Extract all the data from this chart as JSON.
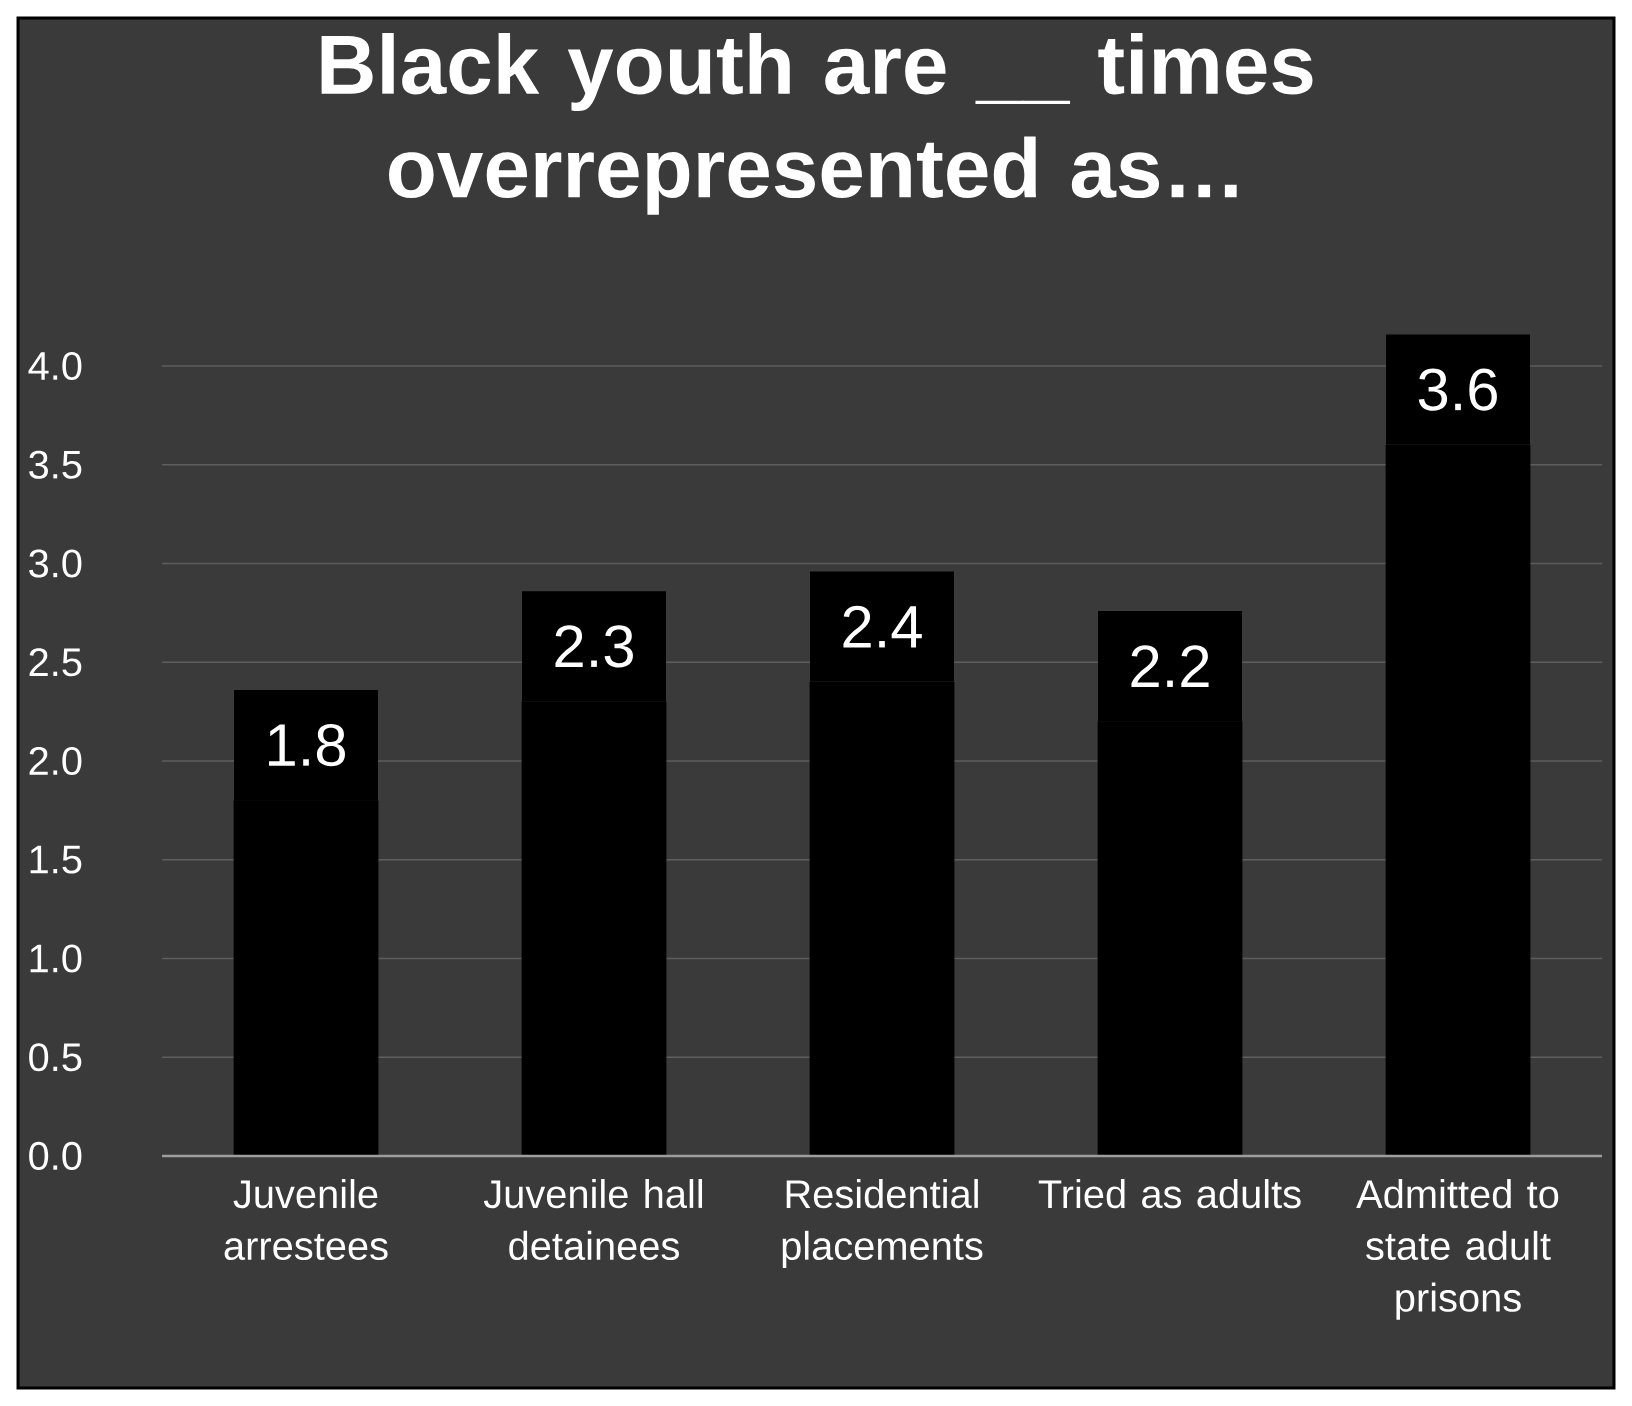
{
  "chart_data": {
    "type": "bar",
    "title": "Black youth are __ times overrepresented as…",
    "categories": [
      "Juvenile arrestees",
      "Juvenile hall detainees",
      "Residential placements",
      "Tried as adults",
      "Admitted to state adult prisons"
    ],
    "values": [
      1.8,
      2.3,
      2.4,
      2.2,
      3.6
    ],
    "color": "#000000",
    "ylim": [
      0,
      4
    ],
    "yticks": [
      {
        "value": 0,
        "label": "0.0"
      },
      {
        "value": 0.5,
        "label": "0.5"
      },
      {
        "value": 1,
        "label": "1.0"
      },
      {
        "value": 1.5,
        "label": "1.5"
      },
      {
        "value": 2,
        "label": "2.0"
      },
      {
        "value": 2.5,
        "label": "2.5"
      },
      {
        "value": 3,
        "label": "3.0"
      },
      {
        "value": 3.5,
        "label": "3.5"
      },
      {
        "value": 4,
        "label": "4.0"
      }
    ],
    "grid": "y",
    "data_labels": true
  }
}
